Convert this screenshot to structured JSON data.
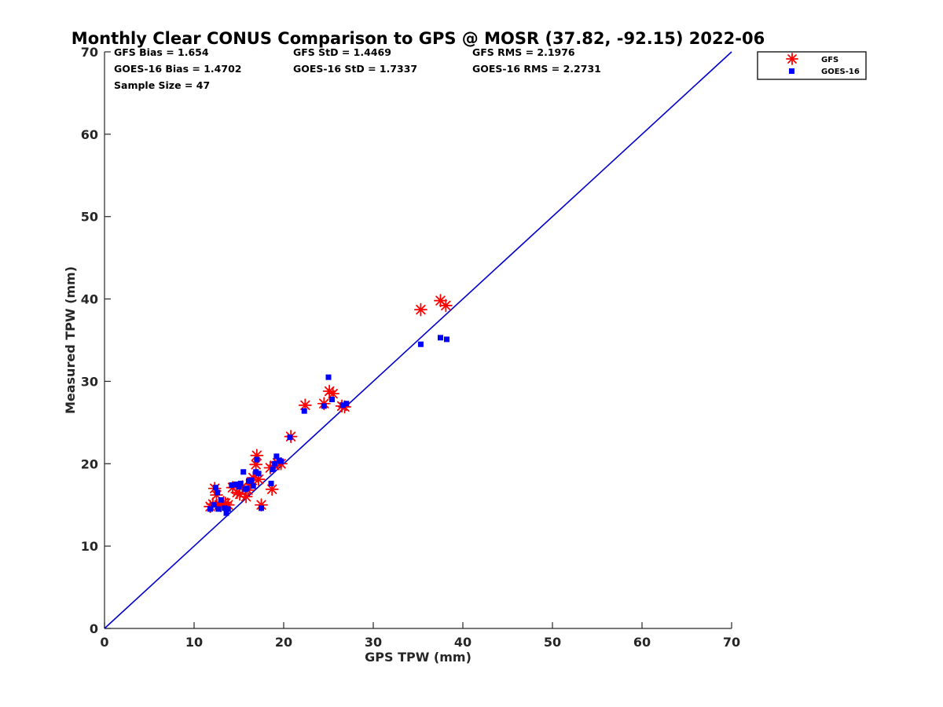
{
  "chart_data": {
    "type": "scatter",
    "title": "Monthly Clear CONUS Comparison to GPS @ MOSR (37.82, -92.15) 2022-06",
    "xlabel": "GPS TPW (mm)",
    "ylabel": "Measured TPW (mm)",
    "xlim": [
      0,
      70
    ],
    "ylim": [
      0,
      70
    ],
    "xticks": [
      "0",
      "10",
      "20",
      "30",
      "40",
      "50",
      "60",
      "70"
    ],
    "yticks": [
      "0",
      "10",
      "20",
      "30",
      "40",
      "50",
      "60",
      "70"
    ],
    "grid": false,
    "legend_position": "outside-top-right",
    "stats": [
      {
        "text": "GFS Bias = 1.654"
      },
      {
        "text": "GFS StD = 1.4469"
      },
      {
        "text": "GFS RMS = 2.1976"
      },
      {
        "text": "GOES-16 Bias = 1.4702"
      },
      {
        "text": "GOES-16 StD = 1.7337"
      },
      {
        "text": "GOES-16 RMS = 2.2731"
      },
      {
        "text": "Sample Size = 47"
      }
    ],
    "reference_line": {
      "x": [
        0,
        70
      ],
      "y": [
        0,
        70
      ],
      "color": "#0000cc"
    },
    "series": [
      {
        "name": "GFS",
        "marker": "asterisk",
        "color": "#ff0000",
        "points": [
          [
            11.8,
            14.8
          ],
          [
            12.1,
            15.1
          ],
          [
            12.3,
            17.0
          ],
          [
            12.5,
            16.2
          ],
          [
            12.8,
            15.0
          ],
          [
            13.0,
            14.9
          ],
          [
            13.3,
            15.3
          ],
          [
            13.5,
            15.2
          ],
          [
            13.8,
            15.0
          ],
          [
            14.3,
            17.1
          ],
          [
            14.8,
            16.5
          ],
          [
            15.1,
            16.3
          ],
          [
            15.4,
            17.2
          ],
          [
            15.8,
            16.0
          ],
          [
            16.0,
            16.8
          ],
          [
            16.3,
            17.5
          ],
          [
            16.6,
            18.3
          ],
          [
            16.9,
            19.9
          ],
          [
            17.0,
            21.0
          ],
          [
            17.2,
            18.1
          ],
          [
            17.5,
            15.0
          ],
          [
            18.5,
            19.5
          ],
          [
            18.7,
            16.9
          ],
          [
            19.0,
            19.8
          ],
          [
            19.3,
            20.1
          ],
          [
            19.7,
            20.0
          ],
          [
            20.8,
            23.3
          ],
          [
            22.4,
            27.1
          ],
          [
            24.5,
            27.3
          ],
          [
            25.1,
            28.8
          ],
          [
            25.5,
            28.5
          ],
          [
            26.5,
            27.0
          ],
          [
            26.8,
            26.9
          ],
          [
            35.3,
            38.7
          ],
          [
            37.5,
            39.8
          ],
          [
            38.1,
            39.2
          ]
        ]
      },
      {
        "name": "GOES-16",
        "marker": "square",
        "color": "#0000ff",
        "points": [
          [
            11.8,
            14.5
          ],
          [
            12.2,
            15.0
          ],
          [
            12.4,
            17.1
          ],
          [
            12.6,
            16.5
          ],
          [
            12.7,
            14.5
          ],
          [
            13.0,
            15.6
          ],
          [
            13.4,
            14.6
          ],
          [
            13.6,
            14.0
          ],
          [
            13.8,
            14.5
          ],
          [
            14.2,
            17.4
          ],
          [
            14.7,
            17.5
          ],
          [
            15.0,
            17.2
          ],
          [
            15.2,
            17.6
          ],
          [
            15.5,
            19.0
          ],
          [
            15.7,
            16.9
          ],
          [
            15.9,
            17.0
          ],
          [
            16.1,
            17.9
          ],
          [
            16.4,
            18.0
          ],
          [
            16.6,
            17.3
          ],
          [
            16.9,
            19.0
          ],
          [
            17.0,
            20.5
          ],
          [
            17.2,
            18.8
          ],
          [
            17.5,
            14.6
          ],
          [
            18.6,
            17.6
          ],
          [
            18.8,
            19.3
          ],
          [
            19.0,
            20.0
          ],
          [
            19.2,
            20.9
          ],
          [
            19.5,
            20.4
          ],
          [
            19.7,
            20.3
          ],
          [
            20.7,
            23.2
          ],
          [
            22.3,
            26.4
          ],
          [
            24.5,
            27.0
          ],
          [
            25.0,
            30.5
          ],
          [
            25.4,
            27.8
          ],
          [
            26.6,
            27.1
          ],
          [
            27.0,
            27.3
          ],
          [
            35.3,
            34.5
          ],
          [
            37.5,
            35.3
          ],
          [
            38.2,
            35.1
          ]
        ]
      }
    ]
  }
}
